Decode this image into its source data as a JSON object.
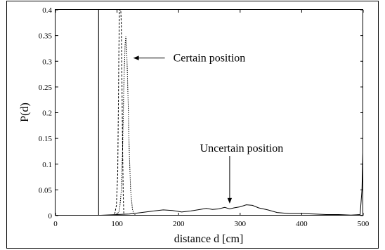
{
  "chart_data": {
    "type": "line",
    "xlabel": "distance d [cm]",
    "ylabel": "P(d)",
    "xlim": [
      0,
      500
    ],
    "ylim": [
      0,
      0.4
    ],
    "xticks": [
      "0",
      "100",
      "200",
      "300",
      "400",
      "500"
    ],
    "yticks": [
      "0",
      "0.05",
      "0.1",
      "0.15",
      "0.2",
      "0.25",
      "0.3",
      "0.35",
      "0.4"
    ],
    "grid": false,
    "legend": "none",
    "vertical_line": {
      "x": 70
    },
    "series": [
      {
        "style": "dashed",
        "points": [
          [
            0,
            0
          ],
          [
            90,
            0
          ],
          [
            96,
            0.002
          ],
          [
            99,
            0.02
          ],
          [
            101,
            0.08
          ],
          [
            102,
            0.2
          ],
          [
            103,
            0.32
          ],
          [
            104,
            0.4
          ],
          [
            105,
            0.4
          ],
          [
            106,
            0.4
          ],
          [
            107,
            0.37
          ],
          [
            108,
            0.26
          ],
          [
            109,
            0.13
          ],
          [
            110,
            0.04
          ],
          [
            111,
            0.005
          ],
          [
            112,
            0
          ],
          [
            500,
            0
          ]
        ]
      },
      {
        "style": "dotted",
        "points": [
          [
            0,
            0
          ],
          [
            95,
            0
          ],
          [
            100,
            0.002
          ],
          [
            104,
            0.01
          ],
          [
            107,
            0.05
          ],
          [
            109,
            0.13
          ],
          [
            111,
            0.25
          ],
          [
            113,
            0.33
          ],
          [
            114,
            0.348
          ],
          [
            115,
            0.345
          ],
          [
            116,
            0.31
          ],
          [
            118,
            0.22
          ],
          [
            120,
            0.12
          ],
          [
            122,
            0.05
          ],
          [
            125,
            0.012
          ],
          [
            128,
            0.002
          ],
          [
            132,
            0
          ],
          [
            500,
            0
          ]
        ]
      },
      {
        "style": "solid",
        "points": [
          [
            0,
            0
          ],
          [
            60,
            0
          ],
          [
            80,
            0.001
          ],
          [
            100,
            0.002
          ],
          [
            120,
            0.003
          ],
          [
            140,
            0.006
          ],
          [
            160,
            0.009
          ],
          [
            175,
            0.011
          ],
          [
            190,
            0.01
          ],
          [
            205,
            0.007
          ],
          [
            220,
            0.009
          ],
          [
            235,
            0.012
          ],
          [
            245,
            0.014
          ],
          [
            255,
            0.012
          ],
          [
            265,
            0.013
          ],
          [
            275,
            0.016
          ],
          [
            283,
            0.013
          ],
          [
            290,
            0.015
          ],
          [
            300,
            0.017
          ],
          [
            310,
            0.021
          ],
          [
            320,
            0.02
          ],
          [
            330,
            0.015
          ],
          [
            345,
            0.011
          ],
          [
            360,
            0.006
          ],
          [
            380,
            0.004
          ],
          [
            400,
            0.004
          ],
          [
            420,
            0.003
          ],
          [
            440,
            0.002
          ],
          [
            460,
            0.002
          ],
          [
            480,
            0.001
          ],
          [
            495,
            0.002
          ],
          [
            498,
            0.05
          ],
          [
            500,
            0.15
          ]
        ]
      }
    ],
    "annotations": [
      {
        "text": "Certain position",
        "arrow_to": [
          116,
          0.305
        ]
      },
      {
        "text": "Uncertain position",
        "arrow_to": [
          283,
          0.018
        ]
      }
    ]
  }
}
